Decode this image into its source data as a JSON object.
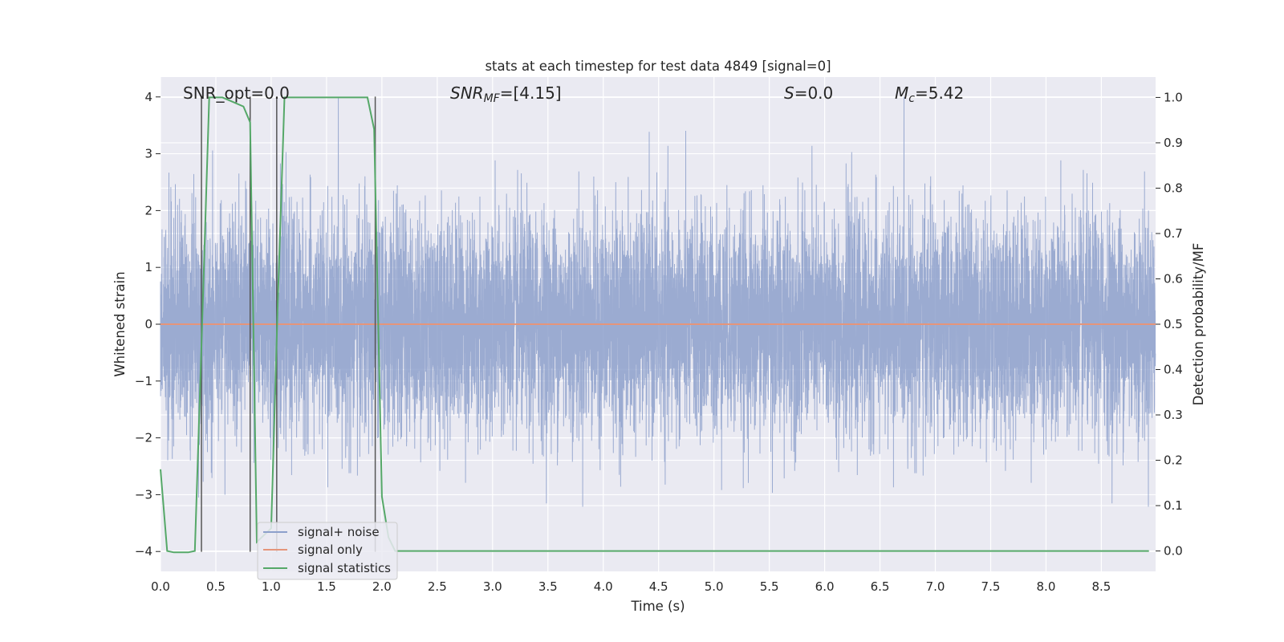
{
  "chart_data": {
    "type": "line",
    "title": "stats at each timestep for test data 4849 [signal=0]",
    "xlabel": "Time (s)",
    "ylabel": "Whitened strain",
    "y2label": "Detection probability/MF",
    "xlim": [
      0.0,
      8.99
    ],
    "ylim": [
      -4.35,
      4.35
    ],
    "y2lim": [
      -0.045,
      1.045
    ],
    "xticks": [
      "0.0",
      "0.5",
      "1.0",
      "1.5",
      "2.0",
      "2.5",
      "3.0",
      "3.5",
      "4.0",
      "4.5",
      "5.0",
      "5.5",
      "6.0",
      "6.5",
      "7.0",
      "7.5",
      "8.0",
      "8.5"
    ],
    "yticks": [
      "−4",
      "−3",
      "−2",
      "−1",
      "0",
      "1",
      "2",
      "3",
      "4"
    ],
    "y2ticks": [
      "0.0",
      "0.1",
      "0.2",
      "0.3",
      "0.4",
      "0.5",
      "0.6",
      "0.7",
      "0.8",
      "0.9",
      "1.0"
    ],
    "grid": true,
    "legend_position": "lower-left",
    "annotations": {
      "snr_opt": "SNR_opt=0.0",
      "snr_mf": "SNR_MF=[4.15]",
      "s": "S=0.0",
      "mc": "M_c=5.42"
    },
    "series": [
      {
        "name": "signal+ noise",
        "color": "#8da0cb",
        "axis": "left",
        "sample_rate_hz": 1024,
        "duration_s": 9,
        "envelope_upper": 2.2,
        "envelope_lower": -2.0,
        "peak_max": 4.0,
        "peak_min": -4.0
      },
      {
        "name": "signal only",
        "color": "#e5957a",
        "axis": "left",
        "x": [
          0.0,
          8.99
        ],
        "y": [
          0.0,
          0.0
        ]
      },
      {
        "name": "signal statistics",
        "color": "#55a868",
        "axis": "right",
        "x": [
          0.0,
          0.06,
          0.12,
          0.25,
          0.31,
          0.37,
          0.44,
          0.56,
          0.75,
          0.81,
          0.87,
          1.0,
          1.06,
          1.12,
          1.25,
          1.37,
          1.5,
          1.62,
          1.75,
          1.87,
          1.93,
          2.0,
          2.06,
          2.12,
          2.25,
          2.5,
          3.0,
          4.0,
          5.0,
          6.0,
          7.0,
          8.0,
          8.93
        ],
        "y": [
          0.18,
          0.0,
          -0.003,
          -0.003,
          0.0,
          0.45,
          1.0,
          1.0,
          0.98,
          0.945,
          0.02,
          0.05,
          0.55,
          1.0,
          1.0,
          1.0,
          1.0,
          1.0,
          1.0,
          1.0,
          0.93,
          0.12,
          0.03,
          0.0,
          0.0,
          0.0,
          0.0,
          0.0,
          0.0,
          0.0,
          0.0,
          0.0,
          0.0
        ]
      }
    ],
    "vertical_markers": [
      0.37,
      0.81,
      1.05,
      1.94
    ]
  }
}
